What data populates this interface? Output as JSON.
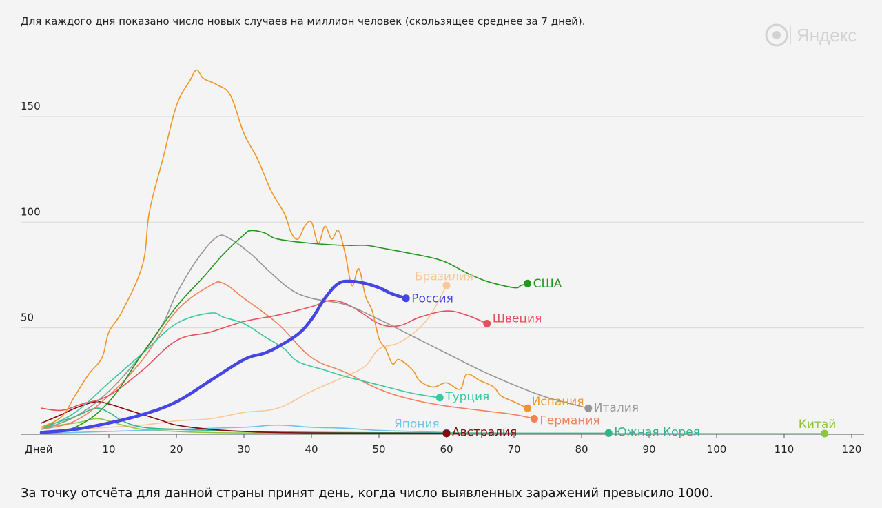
{
  "header": {
    "subtitle": "Для каждого дня показано число новых случаев на миллион человек (скользящее среднее за 7 дней).",
    "logo_text": "Яндекс",
    "logo_icon": "yandex-logo-icon"
  },
  "footnote": "За точку отсчёта для данной страны принят день, когда число выявленных заражений превысило 1000.",
  "chart_data": {
    "type": "line",
    "xlabel": "Дней",
    "ylabel": "",
    "title": "",
    "xlim": [
      0,
      120
    ],
    "ylim": [
      0,
      175
    ],
    "x_ticks": [
      10,
      20,
      30,
      40,
      50,
      60,
      70,
      80,
      90,
      100,
      110,
      120
    ],
    "y_ticks": [
      50,
      100,
      150
    ],
    "grid": "horizontal",
    "series": [
      {
        "name": "Бразилия",
        "color": "#fac896",
        "width": 1.6,
        "points": [
          [
            0,
            1
          ],
          [
            5,
            2
          ],
          [
            10,
            3
          ],
          [
            15,
            4
          ],
          [
            20,
            6
          ],
          [
            25,
            7
          ],
          [
            30,
            10
          ],
          [
            35,
            12
          ],
          [
            40,
            20
          ],
          [
            45,
            27
          ],
          [
            48,
            32
          ],
          [
            50,
            40
          ],
          [
            53,
            43
          ],
          [
            56,
            50
          ],
          [
            58,
            58
          ],
          [
            60,
            70
          ]
        ]
      },
      {
        "name": "Китай",
        "color": "#8cc83c",
        "width": 1.6,
        "points": [
          [
            0,
            3
          ],
          [
            5,
            5
          ],
          [
            8,
            7
          ],
          [
            10,
            6
          ],
          [
            12,
            4
          ],
          [
            15,
            2
          ],
          [
            20,
            1
          ],
          [
            25,
            0.5
          ],
          [
            30,
            0.3
          ],
          [
            40,
            0.2
          ],
          [
            60,
            0.1
          ],
          [
            80,
            0
          ],
          [
            100,
            0
          ],
          [
            116,
            0
          ]
        ]
      },
      {
        "name": "Япония",
        "color": "#6ec3e6",
        "width": 1.6,
        "points": [
          [
            0,
            0
          ],
          [
            10,
            1
          ],
          [
            20,
            2
          ],
          [
            30,
            3
          ],
          [
            35,
            4
          ],
          [
            40,
            3
          ],
          [
            45,
            2.5
          ],
          [
            50,
            1.5
          ],
          [
            55,
            1
          ],
          [
            60,
            0.5
          ]
        ]
      },
      {
        "name": "Южная Корея",
        "color": "#32b48c",
        "width": 1.6,
        "points": [
          [
            0,
            3
          ],
          [
            5,
            8
          ],
          [
            8,
            12
          ],
          [
            10,
            10
          ],
          [
            12,
            6
          ],
          [
            15,
            3
          ],
          [
            20,
            2
          ],
          [
            25,
            1.5
          ],
          [
            30,
            1
          ],
          [
            40,
            0.6
          ],
          [
            50,
            0.4
          ],
          [
            60,
            0.3
          ],
          [
            70,
            0.2
          ],
          [
            84,
            0.2
          ]
        ]
      },
      {
        "name": "Австралия",
        "color": "#820a0a",
        "width": 1.6,
        "points": [
          [
            0,
            5
          ],
          [
            3,
            9
          ],
          [
            5,
            12
          ],
          [
            8,
            15
          ],
          [
            10,
            14
          ],
          [
            12,
            12
          ],
          [
            15,
            9
          ],
          [
            18,
            6
          ],
          [
            20,
            4
          ],
          [
            25,
            2
          ],
          [
            30,
            1
          ],
          [
            35,
            0.5
          ],
          [
            40,
            0.3
          ],
          [
            50,
            0.2
          ],
          [
            60,
            0.1
          ]
        ]
      },
      {
        "name": "Германия",
        "color": "#f0825a",
        "width": 1.6,
        "points": [
          [
            0,
            2
          ],
          [
            5,
            6
          ],
          [
            10,
            18
          ],
          [
            15,
            35
          ],
          [
            20,
            58
          ],
          [
            25,
            70
          ],
          [
            27,
            71
          ],
          [
            30,
            64
          ],
          [
            35,
            52
          ],
          [
            40,
            36
          ],
          [
            45,
            29
          ],
          [
            50,
            21
          ],
          [
            55,
            16
          ],
          [
            60,
            13
          ],
          [
            65,
            11
          ],
          [
            70,
            9
          ],
          [
            73,
            7
          ]
        ]
      },
      {
        "name": "Швеция",
        "color": "#e6505a",
        "width": 1.6,
        "points": [
          [
            0,
            12
          ],
          [
            3,
            11
          ],
          [
            6,
            14
          ],
          [
            10,
            18
          ],
          [
            15,
            30
          ],
          [
            20,
            44
          ],
          [
            25,
            48
          ],
          [
            30,
            53
          ],
          [
            35,
            56
          ],
          [
            40,
            60
          ],
          [
            43,
            63
          ],
          [
            46,
            60
          ],
          [
            50,
            52
          ],
          [
            53,
            51
          ],
          [
            56,
            55
          ],
          [
            60,
            58
          ],
          [
            63,
            56
          ],
          [
            66,
            52
          ]
        ]
      },
      {
        "name": "Турция",
        "color": "#3cc8a0",
        "width": 1.6,
        "points": [
          [
            0,
            2
          ],
          [
            5,
            10
          ],
          [
            10,
            24
          ],
          [
            15,
            38
          ],
          [
            20,
            52
          ],
          [
            25,
            57
          ],
          [
            27,
            55
          ],
          [
            30,
            52
          ],
          [
            33,
            46
          ],
          [
            36,
            40
          ],
          [
            38,
            34
          ],
          [
            42,
            30
          ],
          [
            45,
            27
          ],
          [
            50,
            23
          ],
          [
            55,
            19
          ],
          [
            59,
            17
          ]
        ]
      },
      {
        "name": "Италия",
        "color": "#969696",
        "width": 1.6,
        "points": [
          [
            0,
            2
          ],
          [
            5,
            8
          ],
          [
            10,
            20
          ],
          [
            15,
            38
          ],
          [
            18,
            52
          ],
          [
            20,
            66
          ],
          [
            23,
            82
          ],
          [
            26,
            93
          ],
          [
            28,
            92
          ],
          [
            31,
            85
          ],
          [
            34,
            76
          ],
          [
            37,
            68
          ],
          [
            40,
            64
          ],
          [
            45,
            61
          ],
          [
            50,
            54
          ],
          [
            55,
            46
          ],
          [
            60,
            38
          ],
          [
            65,
            30
          ],
          [
            70,
            23
          ],
          [
            75,
            17
          ],
          [
            81,
            12
          ]
        ]
      },
      {
        "name": "Испания",
        "color": "#f09628",
        "width": 1.6,
        "points": [
          [
            0,
            3
          ],
          [
            3,
            8
          ],
          [
            5,
            18
          ],
          [
            7,
            28
          ],
          [
            9,
            36
          ],
          [
            10,
            48
          ],
          [
            12,
            58
          ],
          [
            15,
            80
          ],
          [
            16,
            105
          ],
          [
            18,
            130
          ],
          [
            20,
            155
          ],
          [
            22,
            167
          ],
          [
            23,
            172
          ],
          [
            24,
            168
          ],
          [
            26,
            165
          ],
          [
            28,
            160
          ],
          [
            30,
            142
          ],
          [
            32,
            130
          ],
          [
            34,
            115
          ],
          [
            36,
            104
          ],
          [
            37,
            95
          ],
          [
            38,
            92
          ],
          [
            39,
            98
          ],
          [
            40,
            100
          ],
          [
            41,
            90
          ],
          [
            42,
            98
          ],
          [
            43,
            92
          ],
          [
            44,
            96
          ],
          [
            45,
            85
          ],
          [
            46,
            70
          ],
          [
            47,
            78
          ],
          [
            48,
            65
          ],
          [
            49,
            58
          ],
          [
            50,
            45
          ],
          [
            51,
            40
          ],
          [
            52,
            33
          ],
          [
            53,
            35
          ],
          [
            55,
            30
          ],
          [
            56,
            25
          ],
          [
            58,
            22
          ],
          [
            60,
            24
          ],
          [
            62,
            21
          ],
          [
            63,
            28
          ],
          [
            65,
            25
          ],
          [
            67,
            22
          ],
          [
            68,
            18
          ],
          [
            70,
            15
          ],
          [
            72,
            12
          ]
        ]
      },
      {
        "name": "США",
        "color": "#23961e",
        "width": 1.6,
        "points": [
          [
            0,
            0.5
          ],
          [
            5,
            3
          ],
          [
            10,
            15
          ],
          [
            15,
            38
          ],
          [
            20,
            60
          ],
          [
            24,
            74
          ],
          [
            27,
            85
          ],
          [
            30,
            94
          ],
          [
            31,
            96
          ],
          [
            33,
            95
          ],
          [
            35,
            92
          ],
          [
            40,
            90
          ],
          [
            45,
            89
          ],
          [
            48,
            89
          ],
          [
            50,
            88
          ],
          [
            55,
            85
          ],
          [
            58,
            83
          ],
          [
            60,
            81
          ],
          [
            63,
            76
          ],
          [
            66,
            72
          ],
          [
            70,
            69
          ],
          [
            71,
            70
          ],
          [
            72,
            71
          ]
        ]
      },
      {
        "name": "Россия",
        "color": "#4646e6",
        "width": 4.5,
        "points": [
          [
            0,
            0.5
          ],
          [
            5,
            2
          ],
          [
            10,
            5
          ],
          [
            15,
            9
          ],
          [
            20,
            15
          ],
          [
            25,
            25
          ],
          [
            30,
            35
          ],
          [
            33,
            38
          ],
          [
            35,
            41
          ],
          [
            38,
            47
          ],
          [
            40,
            54
          ],
          [
            42,
            64
          ],
          [
            44,
            71
          ],
          [
            46,
            72
          ],
          [
            48,
            71
          ],
          [
            50,
            69
          ],
          [
            52,
            66
          ],
          [
            54,
            64
          ]
        ]
      }
    ],
    "end_markers": [
      {
        "label": "Бразилия",
        "color": "#fac896",
        "x": 60,
        "y": 70
      },
      {
        "label": "США",
        "color": "#23961e",
        "x": 72,
        "y": 71
      },
      {
        "label": "Россия",
        "color": "#4646e6",
        "x": 54,
        "y": 64
      },
      {
        "label": "Швеция",
        "color": "#e6505a",
        "x": 66,
        "y": 52
      },
      {
        "label": "Турция",
        "color": "#3cc8a0",
        "x": 59,
        "y": 17
      },
      {
        "label": "Испания",
        "color": "#f09628",
        "x": 72,
        "y": 12
      },
      {
        "label": "Италия",
        "color": "#969696",
        "x": 81,
        "y": 12
      },
      {
        "label": "Германия",
        "color": "#f0825a",
        "x": 73,
        "y": 7
      },
      {
        "label": "Япония",
        "color": "#6ec3e6",
        "x": 60,
        "y": 0.5
      },
      {
        "label": "Австралия",
        "color": "#820a0a",
        "x": 60,
        "y": 0.1
      },
      {
        "label": "Южная Корея",
        "color": "#32b48c",
        "x": 84,
        "y": 0.2
      },
      {
        "label": "Китай",
        "color": "#8cc83c",
        "x": 116,
        "y": 0
      }
    ]
  }
}
